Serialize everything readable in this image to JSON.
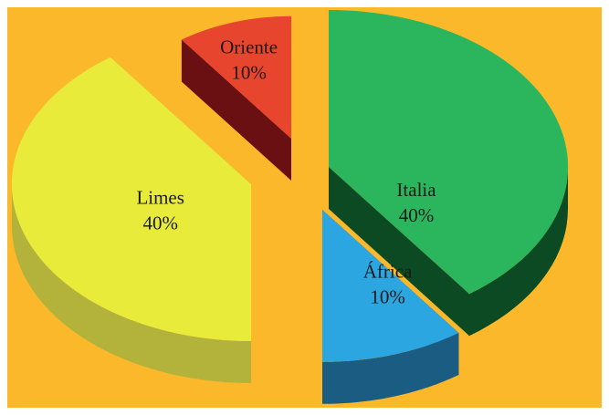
{
  "background_color": "#FBB82A",
  "chart_data": {
    "type": "pie",
    "style": "3d-exploded",
    "title": "",
    "slices": [
      {
        "label": "Italia",
        "percent_label": "40%",
        "value": 40,
        "color": "#2BB55C",
        "side_color": "#0B4A22"
      },
      {
        "label": "África",
        "percent_label": "10%",
        "value": 10,
        "color": "#2BA6E0",
        "side_color": "#1A5C82"
      },
      {
        "label": "Limes",
        "percent_label": "40%",
        "value": 40,
        "color": "#E9EB3A",
        "side_color": "#B3B33B"
      },
      {
        "label": "Oriente",
        "percent_label": "10%",
        "value": 10,
        "color": "#E8452E",
        "side_color": "#6A0F12"
      }
    ]
  }
}
